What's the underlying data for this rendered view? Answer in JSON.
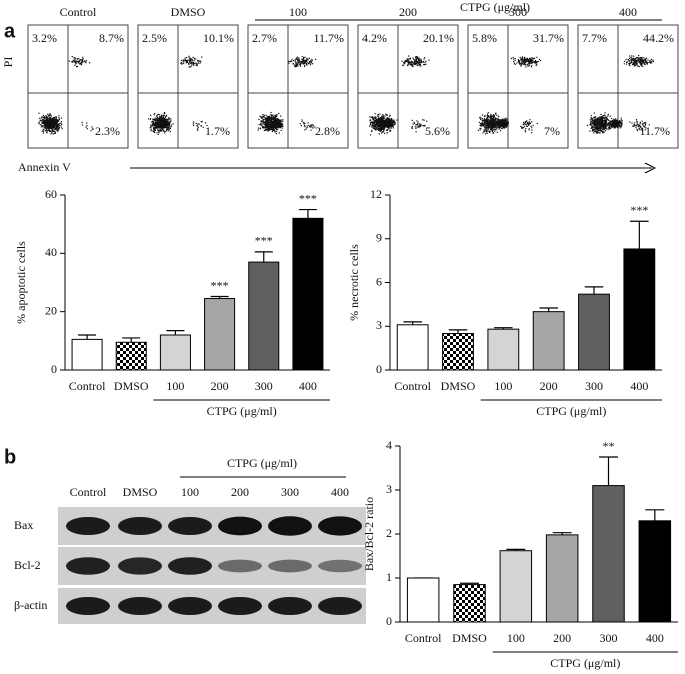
{
  "panel_labels": [
    "a",
    "b"
  ],
  "flow": {
    "group_label": "CTPG (μg/ml)",
    "y_label": "PI",
    "x_label": "Annexin V",
    "plots": [
      {
        "label": "Control",
        "ul": "3.2%",
        "ur": "8.7%",
        "lr": "2.3%"
      },
      {
        "label": "DMSO",
        "ul": "2.5%",
        "ur": "10.1%",
        "lr": "1.7%"
      },
      {
        "label": "100",
        "ul": "2.7%",
        "ur": "11.7%",
        "lr": "2.8%"
      },
      {
        "label": "200",
        "ul": "4.2%",
        "ur": "20.1%",
        "lr": "5.6%"
      },
      {
        "label": "300",
        "ul": "5.8%",
        "ur": "31.7%",
        "lr": "7%"
      },
      {
        "label": "400",
        "ul": "7.7%",
        "ur": "44.2%",
        "lr": "11.7%"
      }
    ]
  },
  "blot": {
    "group_label": "CTPG (μg/ml)",
    "lanes": [
      "Control",
      "DMSO",
      "100",
      "200",
      "300",
      "400"
    ],
    "rows": [
      "Bax",
      "Bcl-2",
      "β-actin"
    ]
  },
  "chart_data": [
    {
      "type": "bar",
      "y_label": "% apoptotic cells",
      "categories": [
        "Control",
        "DMSO",
        "100",
        "200",
        "300",
        "400"
      ],
      "values": [
        10.5,
        9.5,
        12,
        24.5,
        37,
        52
      ],
      "errors": [
        1.5,
        1.5,
        1.5,
        0.7,
        3.5,
        3
      ],
      "colors": [
        "#ffffff",
        "checker",
        "#d4d4d4",
        "#a6a6a6",
        "#606060",
        "#000000"
      ],
      "ylim": [
        0,
        60
      ],
      "yticks": [
        0,
        20,
        40,
        60
      ],
      "annotations": [
        {
          "category": "200",
          "text": "***"
        },
        {
          "category": "300",
          "text": "***"
        },
        {
          "category": "400",
          "text": "***"
        }
      ],
      "group": {
        "label": "CTPG (μg/ml)",
        "from": "100",
        "to": "400"
      }
    },
    {
      "type": "bar",
      "y_label": "% necrotic cells",
      "categories": [
        "Control",
        "DMSO",
        "100",
        "200",
        "300",
        "400"
      ],
      "values": [
        3.1,
        2.5,
        2.8,
        4.0,
        5.2,
        8.3
      ],
      "errors": [
        0.2,
        0.25,
        0.1,
        0.25,
        0.5,
        1.9
      ],
      "colors": [
        "#ffffff",
        "checker",
        "#d4d4d4",
        "#a6a6a6",
        "#606060",
        "#000000"
      ],
      "ylim": [
        0,
        12
      ],
      "yticks": [
        0,
        3,
        6,
        9,
        12
      ],
      "annotations": [
        {
          "category": "400",
          "text": "***"
        }
      ],
      "group": {
        "label": "CTPG (μg/ml)",
        "from": "100",
        "to": "400"
      }
    },
    {
      "type": "bar",
      "y_label": "Bax/Bcl-2 ratio",
      "categories": [
        "Control",
        "DMSO",
        "100",
        "200",
        "300",
        "400"
      ],
      "values": [
        1.0,
        0.85,
        1.62,
        1.98,
        3.1,
        2.3
      ],
      "errors": [
        0,
        0.03,
        0.03,
        0.05,
        0.65,
        0.25
      ],
      "colors": [
        "#ffffff",
        "checker",
        "#d4d4d4",
        "#a6a6a6",
        "#606060",
        "#000000"
      ],
      "ylim": [
        0,
        4
      ],
      "yticks": [
        0,
        1,
        2,
        3,
        4
      ],
      "annotations": [
        {
          "category": "300",
          "text": "**"
        }
      ],
      "group": {
        "label": "CTPG (μg/ml)",
        "from": "100",
        "to": "400"
      }
    }
  ]
}
